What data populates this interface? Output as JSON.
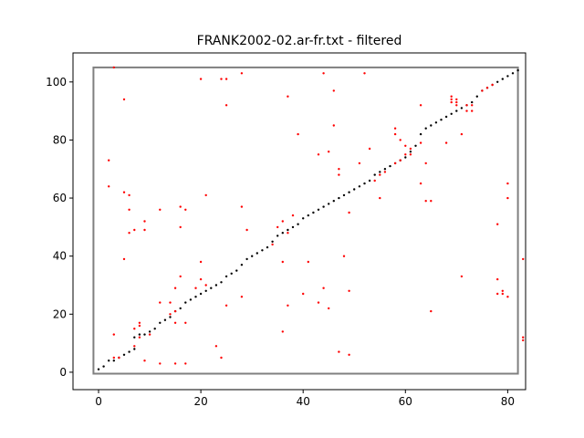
{
  "chart_data": {
    "type": "scatter",
    "title": "FRANK2002-02.ar-fr.txt - filtered",
    "xlabel": "",
    "ylabel": "",
    "xlim": [
      -5,
      83.5
    ],
    "ylim": [
      -6,
      110
    ],
    "x_ticks": [
      0,
      20,
      40,
      60,
      80
    ],
    "y_ticks": [
      0,
      20,
      40,
      60,
      80,
      100
    ],
    "grid": false,
    "bounding_rect": {
      "x": [
        -1,
        82
      ],
      "y": [
        -0.5,
        105
      ],
      "color": "#808080"
    },
    "series": [
      {
        "color": "#000000",
        "points": [
          [
            0,
            1
          ],
          [
            1,
            2
          ],
          [
            2,
            4
          ],
          [
            3,
            4
          ],
          [
            4,
            5
          ],
          [
            5,
            6
          ],
          [
            6,
            7
          ],
          [
            7,
            8
          ],
          [
            7,
            12
          ],
          [
            8,
            13
          ],
          [
            9,
            13
          ],
          [
            10,
            14
          ],
          [
            11,
            15
          ],
          [
            12,
            17
          ],
          [
            13,
            18
          ],
          [
            14,
            19
          ],
          [
            15,
            21
          ],
          [
            16,
            22
          ],
          [
            17,
            24
          ],
          [
            18,
            25
          ],
          [
            19,
            26
          ],
          [
            20,
            27
          ],
          [
            21,
            28
          ],
          [
            22,
            29
          ],
          [
            23,
            30
          ],
          [
            24,
            31
          ],
          [
            25,
            33
          ],
          [
            26,
            34
          ],
          [
            27,
            35
          ],
          [
            28,
            37
          ],
          [
            29,
            39
          ],
          [
            30,
            40
          ],
          [
            31,
            41
          ],
          [
            32,
            42
          ],
          [
            33,
            43
          ],
          [
            34,
            45
          ],
          [
            35,
            47
          ],
          [
            36,
            48
          ],
          [
            37,
            49
          ],
          [
            38,
            50
          ],
          [
            39,
            51
          ],
          [
            40,
            53
          ],
          [
            41,
            54
          ],
          [
            42,
            55
          ],
          [
            43,
            56
          ],
          [
            44,
            57
          ],
          [
            45,
            58
          ],
          [
            46,
            59
          ],
          [
            47,
            60
          ],
          [
            48,
            61
          ],
          [
            49,
            62
          ],
          [
            50,
            63
          ],
          [
            51,
            64
          ],
          [
            52,
            65
          ],
          [
            53,
            66
          ],
          [
            54,
            68
          ],
          [
            55,
            69
          ],
          [
            56,
            70
          ],
          [
            57,
            71
          ],
          [
            58,
            72
          ],
          [
            59,
            73
          ],
          [
            60,
            74
          ],
          [
            61,
            76
          ],
          [
            62,
            78
          ],
          [
            63,
            82
          ],
          [
            64,
            84
          ],
          [
            65,
            85
          ],
          [
            66,
            86
          ],
          [
            67,
            87
          ],
          [
            68,
            88
          ],
          [
            69,
            89
          ],
          [
            70,
            90
          ],
          [
            71,
            91
          ],
          [
            72,
            92
          ],
          [
            73,
            93
          ],
          [
            74,
            95
          ],
          [
            75,
            97
          ],
          [
            76,
            98
          ],
          [
            77,
            99
          ],
          [
            78,
            100
          ],
          [
            79,
            101
          ],
          [
            80,
            102
          ],
          [
            81,
            103
          ],
          [
            82,
            104
          ]
        ]
      },
      {
        "color": "#ff0000",
        "points": [
          [
            2,
            73
          ],
          [
            2,
            64
          ],
          [
            3,
            13
          ],
          [
            3,
            5
          ],
          [
            3,
            105
          ],
          [
            4,
            5
          ],
          [
            5,
            94
          ],
          [
            5,
            62
          ],
          [
            5,
            39
          ],
          [
            6,
            61
          ],
          [
            6,
            56
          ],
          [
            6,
            48
          ],
          [
            7,
            49
          ],
          [
            7,
            15
          ],
          [
            7,
            9
          ],
          [
            8,
            17
          ],
          [
            8,
            16
          ],
          [
            8,
            12
          ],
          [
            9,
            52
          ],
          [
            9,
            49
          ],
          [
            9,
            4
          ],
          [
            10,
            13
          ],
          [
            12,
            56
          ],
          [
            12,
            24
          ],
          [
            12,
            3
          ],
          [
            14,
            24
          ],
          [
            14,
            20
          ],
          [
            15,
            29
          ],
          [
            15,
            21
          ],
          [
            15,
            17
          ],
          [
            15,
            3
          ],
          [
            16,
            57
          ],
          [
            16,
            50
          ],
          [
            16,
            33
          ],
          [
            17,
            56
          ],
          [
            17,
            17
          ],
          [
            17,
            3
          ],
          [
            19,
            29
          ],
          [
            20,
            101
          ],
          [
            20,
            38
          ],
          [
            20,
            32
          ],
          [
            21,
            61
          ],
          [
            21,
            30
          ],
          [
            23,
            9
          ],
          [
            24,
            101
          ],
          [
            24,
            5
          ],
          [
            25,
            101
          ],
          [
            25,
            92
          ],
          [
            25,
            23
          ],
          [
            28,
            103
          ],
          [
            28,
            57
          ],
          [
            28,
            26
          ],
          [
            29,
            49
          ],
          [
            34,
            44
          ],
          [
            35,
            50
          ],
          [
            36,
            52
          ],
          [
            36,
            38
          ],
          [
            36,
            14
          ],
          [
            37,
            95
          ],
          [
            37,
            23
          ],
          [
            37,
            48
          ],
          [
            38,
            54
          ],
          [
            39,
            82
          ],
          [
            40,
            27
          ],
          [
            41,
            38
          ],
          [
            43,
            75
          ],
          [
            43,
            24
          ],
          [
            44,
            103
          ],
          [
            44,
            29
          ],
          [
            45,
            76
          ],
          [
            45,
            22
          ],
          [
            46,
            97
          ],
          [
            46,
            85
          ],
          [
            47,
            70
          ],
          [
            47,
            68
          ],
          [
            47,
            7
          ],
          [
            48,
            40
          ],
          [
            49,
            28
          ],
          [
            49,
            55
          ],
          [
            49,
            6
          ],
          [
            51,
            72
          ],
          [
            52,
            103
          ],
          [
            53,
            77
          ],
          [
            54,
            66
          ],
          [
            55,
            68
          ],
          [
            55,
            60
          ],
          [
            56,
            69
          ],
          [
            58,
            84
          ],
          [
            58,
            82
          ],
          [
            58,
            72
          ],
          [
            59,
            80
          ],
          [
            59,
            73
          ],
          [
            60,
            78
          ],
          [
            60,
            75
          ],
          [
            61,
            77
          ],
          [
            61,
            75
          ],
          [
            63,
            92
          ],
          [
            63,
            79
          ],
          [
            63,
            65
          ],
          [
            64,
            72
          ],
          [
            64,
            59
          ],
          [
            65,
            59
          ],
          [
            65,
            21
          ],
          [
            68,
            79
          ],
          [
            69,
            95
          ],
          [
            69,
            94
          ],
          [
            69,
            93
          ],
          [
            70,
            94
          ],
          [
            70,
            93
          ],
          [
            70,
            92
          ],
          [
            71,
            82
          ],
          [
            71,
            33
          ],
          [
            72,
            92
          ],
          [
            72,
            90
          ],
          [
            73,
            92
          ],
          [
            73,
            90
          ],
          [
            75,
            97
          ],
          [
            76,
            98
          ],
          [
            77,
            99
          ],
          [
            78,
            51
          ],
          [
            78,
            32
          ],
          [
            78,
            27
          ],
          [
            79,
            28
          ],
          [
            79,
            27
          ],
          [
            80,
            65
          ],
          [
            80,
            60
          ],
          [
            80,
            26
          ],
          [
            83,
            39
          ],
          [
            83,
            12
          ],
          [
            83,
            11
          ]
        ]
      }
    ]
  }
}
